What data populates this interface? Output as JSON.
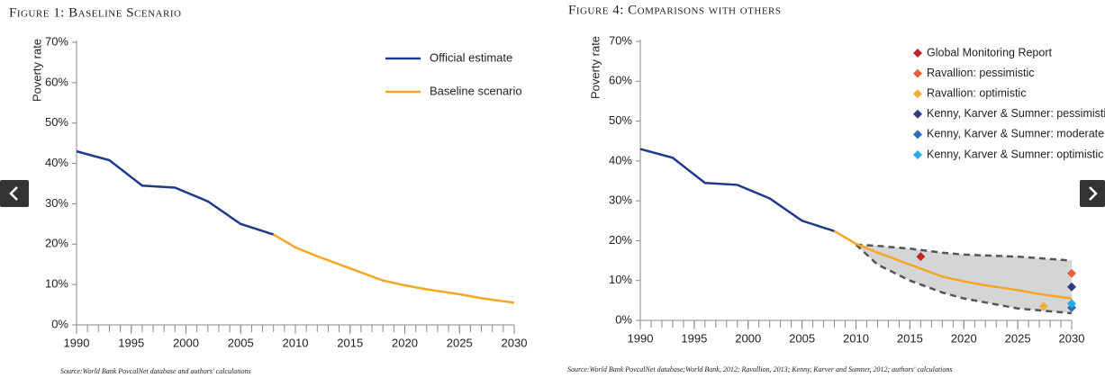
{
  "chart_data": [
    {
      "type": "line",
      "title": "Figure 1: Baseline Scenario",
      "ylabel": "Poverty rate",
      "source": "Source:World Bank PovcalNet database and authors' calculations",
      "xlim": [
        1990,
        2030
      ],
      "xticks": [
        1990,
        1995,
        2000,
        2005,
        2010,
        2015,
        2020,
        2025,
        2030
      ],
      "ylim": [
        0,
        70
      ],
      "yticks": [
        {
          "value": 0,
          "label": "0%"
        },
        {
          "value": 10,
          "label": "10%"
        },
        {
          "value": 20,
          "label": "20%"
        },
        {
          "value": 30,
          "label": "30%"
        },
        {
          "value": 40,
          "label": "40%"
        },
        {
          "value": 50,
          "label": "50%"
        },
        {
          "value": 60,
          "label": "60%"
        },
        {
          "value": 70,
          "label": "70%"
        }
      ],
      "series": [
        {
          "name": "Official estimate",
          "color": "#1f3a8a",
          "x": [
            1990,
            1993,
            1996,
            1999,
            2002,
            2005,
            2008
          ],
          "values": [
            43,
            40.8,
            34.5,
            34,
            30.6,
            25,
            22.4
          ]
        },
        {
          "name": "Baseline scenario",
          "color": "#f5a623",
          "x": [
            2008,
            2010,
            2012,
            2015,
            2018,
            2020,
            2022,
            2025,
            2027,
            2030
          ],
          "values": [
            22.4,
            19.2,
            17,
            14,
            11,
            9.8,
            8.8,
            7.6,
            6.6,
            5.5
          ]
        }
      ]
    },
    {
      "type": "line",
      "title": "Figure 4: Comparisons with others",
      "ylabel": "Poverty rate",
      "source": "Source:World Bank PovcalNet database;World Bank, 2012; Ravallion, 2013; Kenny, Karver and Sumner, 2012; authors' calculations",
      "xlim": [
        1990,
        2030
      ],
      "xticks": [
        1990,
        1995,
        2000,
        2005,
        2010,
        2015,
        2020,
        2025,
        2030
      ],
      "ylim": [
        0,
        70
      ],
      "yticks": [
        {
          "value": 0,
          "label": "0%"
        },
        {
          "value": 10,
          "label": "10%"
        },
        {
          "value": 20,
          "label": "20%"
        },
        {
          "value": 30,
          "label": "30%"
        },
        {
          "value": 40,
          "label": "40%"
        },
        {
          "value": 50,
          "label": "50%"
        },
        {
          "value": 60,
          "label": "60%"
        },
        {
          "value": 70,
          "label": "70%"
        }
      ],
      "band": {
        "color": "#d4d5d7",
        "x": [
          2010,
          2012,
          2015,
          2018,
          2020,
          2025,
          2030
        ],
        "upper": [
          19,
          18.7,
          18,
          17,
          16.5,
          16,
          15
        ],
        "lower": [
          19,
          14,
          10,
          7,
          5.5,
          3,
          1.8
        ]
      },
      "series": [
        {
          "color": "#1f3a8a",
          "x": [
            1990,
            1993,
            1996,
            1999,
            2002,
            2005,
            2008
          ],
          "values": [
            43,
            40.8,
            34.5,
            34,
            30.6,
            25,
            22.4
          ]
        },
        {
          "color": "#f5a623",
          "x": [
            2008,
            2010,
            2012,
            2015,
            2018,
            2020,
            2022,
            2025,
            2027,
            2030
          ],
          "values": [
            22.4,
            19.2,
            17,
            14,
            11,
            9.8,
            8.8,
            7.6,
            6.6,
            5.5
          ]
        }
      ],
      "points": [
        {
          "name": "Global Monitoring Report",
          "color": "#c0272d",
          "x": [
            2016
          ],
          "values": [
            16
          ]
        },
        {
          "name": "Ravallion: pessimistic",
          "color": "#e8603c",
          "x": [
            2030
          ],
          "values": [
            11.8
          ]
        },
        {
          "name": "Ravallion: optimistic",
          "color": "#f7a93b",
          "x": [
            2027.4
          ],
          "values": [
            3.5
          ]
        },
        {
          "name": "Kenny, Karver & Sumner: pessimistic",
          "color": "#2e3a87",
          "x": [
            2030
          ],
          "values": [
            8.4
          ]
        },
        {
          "name": "Kenny, Karver & Sumner: moderate",
          "color": "#2a6ebb",
          "x": [
            2030
          ],
          "values": [
            3.2
          ]
        },
        {
          "name": "Kenny, Karver & Sumner: optimistic",
          "color": "#29abe2",
          "x": [
            2030
          ],
          "values": [
            4.2
          ]
        }
      ]
    }
  ]
}
